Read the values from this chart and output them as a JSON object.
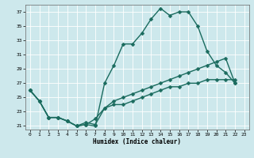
{
  "xlabel": "Humidex (Indice chaleur)",
  "bg_color": "#cde8ec",
  "grid_color": "#ffffff",
  "line_color": "#1a6b5e",
  "xlim": [
    -0.5,
    23.5
  ],
  "ylim": [
    20.5,
    38
  ],
  "xticks": [
    0,
    1,
    2,
    3,
    4,
    5,
    6,
    7,
    8,
    9,
    10,
    11,
    12,
    13,
    14,
    15,
    16,
    17,
    18,
    19,
    20,
    21,
    22,
    23
  ],
  "yticks": [
    21,
    23,
    25,
    27,
    29,
    31,
    33,
    35,
    37
  ],
  "line1_x": [
    0,
    1,
    2,
    3,
    4,
    5,
    6,
    7,
    8,
    9,
    10,
    11,
    12,
    13,
    14,
    15,
    16,
    17,
    18,
    19,
    20,
    21,
    22
  ],
  "line1_y": [
    26.0,
    24.5,
    22.2,
    22.2,
    21.7,
    21.0,
    21.2,
    21.0,
    27.0,
    29.5,
    32.5,
    32.5,
    34.0,
    36.0,
    37.5,
    36.5,
    37.0,
    37.0,
    35.0,
    31.5,
    29.5,
    28.5,
    27.0
  ],
  "line2_x": [
    0,
    1,
    2,
    3,
    4,
    5,
    6,
    7,
    8,
    9,
    10,
    11,
    12,
    13,
    14,
    15,
    16,
    17,
    18,
    19,
    20,
    21,
    22
  ],
  "line2_y": [
    26.0,
    24.5,
    22.2,
    22.2,
    21.7,
    21.0,
    21.2,
    22.0,
    23.5,
    24.5,
    25.0,
    25.5,
    26.0,
    26.5,
    27.0,
    27.5,
    28.0,
    28.5,
    29.0,
    29.5,
    30.0,
    30.5,
    27.0
  ],
  "line3_x": [
    0,
    1,
    2,
    3,
    4,
    5,
    6,
    7,
    8,
    9,
    10,
    11,
    12,
    13,
    14,
    15,
    16,
    17,
    18,
    19,
    20,
    21,
    22
  ],
  "line3_y": [
    26.0,
    24.5,
    22.2,
    22.2,
    21.7,
    21.0,
    21.5,
    21.2,
    23.5,
    24.0,
    24.0,
    24.5,
    25.0,
    25.5,
    26.0,
    26.5,
    26.5,
    27.0,
    27.0,
    27.5,
    27.5,
    27.5,
    27.5
  ],
  "marker_size": 2.5,
  "linewidth": 1.0
}
